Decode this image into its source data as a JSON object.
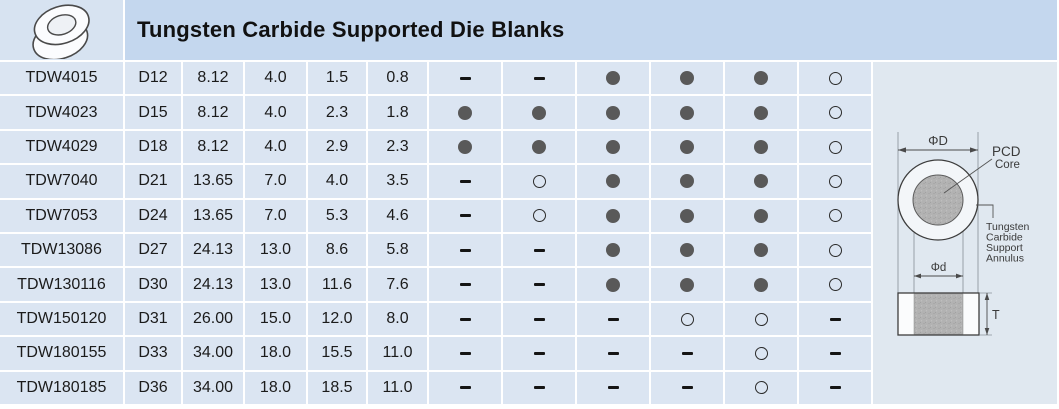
{
  "header": {
    "title": "Tungsten Carbide Supported Die Blanks"
  },
  "table": {
    "rows": [
      {
        "code": "TDW4015",
        "size": "D12",
        "dims": [
          "8.12",
          "4.0",
          "1.5",
          "0.8"
        ],
        "avail": [
          "dash",
          "dash",
          "filled",
          "filled",
          "filled",
          "open"
        ]
      },
      {
        "code": "TDW4023",
        "size": "D15",
        "dims": [
          "8.12",
          "4.0",
          "2.3",
          "1.8"
        ],
        "avail": [
          "filled",
          "filled",
          "filled",
          "filled",
          "filled",
          "open"
        ]
      },
      {
        "code": "TDW4029",
        "size": "D18",
        "dims": [
          "8.12",
          "4.0",
          "2.9",
          "2.3"
        ],
        "avail": [
          "filled",
          "filled",
          "filled",
          "filled",
          "filled",
          "open"
        ]
      },
      {
        "code": "TDW7040",
        "size": "D21",
        "dims": [
          "13.65",
          "7.0",
          "4.0",
          "3.5"
        ],
        "avail": [
          "dash",
          "open",
          "filled",
          "filled",
          "filled",
          "open"
        ]
      },
      {
        "code": "TDW7053",
        "size": "D24",
        "dims": [
          "13.65",
          "7.0",
          "5.3",
          "4.6"
        ],
        "avail": [
          "dash",
          "open",
          "filled",
          "filled",
          "filled",
          "open"
        ]
      },
      {
        "code": "TDW13086",
        "size": "D27",
        "dims": [
          "24.13",
          "13.0",
          "8.6",
          "5.8"
        ],
        "avail": [
          "dash",
          "dash",
          "filled",
          "filled",
          "filled",
          "open"
        ]
      },
      {
        "code": "TDW130116",
        "size": "D30",
        "dims": [
          "24.13",
          "13.0",
          "11.6",
          "7.6"
        ],
        "avail": [
          "dash",
          "dash",
          "filled",
          "filled",
          "filled",
          "open"
        ]
      },
      {
        "code": "TDW150120",
        "size": "D31",
        "dims": [
          "26.00",
          "15.0",
          "12.0",
          "8.0"
        ],
        "avail": [
          "dash",
          "dash",
          "dash",
          "open",
          "open",
          "dash"
        ]
      },
      {
        "code": "TDW180155",
        "size": "D33",
        "dims": [
          "34.00",
          "18.0",
          "15.5",
          "11.0"
        ],
        "avail": [
          "dash",
          "dash",
          "dash",
          "dash",
          "open",
          "dash"
        ]
      },
      {
        "code": "TDW180185",
        "size": "D36",
        "dims": [
          "34.00",
          "18.0",
          "18.5",
          "11.0"
        ],
        "avail": [
          "dash",
          "dash",
          "dash",
          "dash",
          "open",
          "dash"
        ]
      }
    ]
  },
  "symbols": {
    "filled": "●",
    "open": "○",
    "dash": "–"
  },
  "diagram": {
    "outer_diameter_label": "ΦD",
    "core_label_line1": "PCD",
    "core_label_line2": "Core",
    "annulus_label_lines": [
      "Tungsten",
      "Carbide",
      "Support",
      "Annulus"
    ],
    "core_diameter_label": "Φd",
    "thickness_label": "T"
  },
  "colors": {
    "title_bar": "#c4d7ee",
    "data_cell": "#dbe5f2",
    "icon_cell": "#d7e3f1",
    "diagram_bg": "#e0e8f0",
    "gridline": "#ffffff",
    "text": "#1b1b1b",
    "filled_symbol": "#595959",
    "core_gray": "#b2b2b2"
  }
}
